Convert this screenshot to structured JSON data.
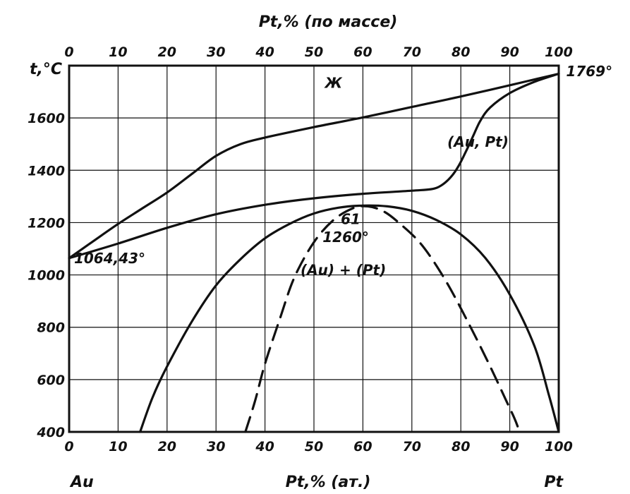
{
  "chart_data": {
    "type": "line",
    "top_axis": {
      "title": "Pt,% (по массе)",
      "ticks": [
        0,
        10,
        20,
        30,
        40,
        50,
        60,
        70,
        80,
        90,
        100
      ]
    },
    "bottom_axis": {
      "title": "Pt,% (ат.)",
      "ticks": [
        0,
        10,
        20,
        30,
        40,
        50,
        60,
        70,
        80,
        90,
        100
      ],
      "left_label": "Au",
      "right_label": "Pt"
    },
    "y_axis": {
      "title": "t,°C",
      "ticks": [
        400,
        600,
        800,
        1000,
        1200,
        1400,
        1600
      ]
    },
    "xlim": [
      0,
      100
    ],
    "ylim": [
      400,
      1800
    ],
    "grid": true,
    "series": [
      {
        "id": "liquidus",
        "style": "solid",
        "points": [
          [
            0,
            1064
          ],
          [
            5,
            1130
          ],
          [
            10,
            1195
          ],
          [
            15,
            1255
          ],
          [
            20,
            1315
          ],
          [
            25,
            1385
          ],
          [
            30,
            1455
          ],
          [
            35,
            1500
          ],
          [
            40,
            1525
          ],
          [
            50,
            1565
          ],
          [
            60,
            1602
          ],
          [
            70,
            1642
          ],
          [
            80,
            1682
          ],
          [
            90,
            1725
          ],
          [
            100,
            1769
          ]
        ]
      },
      {
        "id": "solidus",
        "style": "solid",
        "points": [
          [
            0,
            1064
          ],
          [
            10,
            1120
          ],
          [
            20,
            1180
          ],
          [
            30,
            1232
          ],
          [
            40,
            1268
          ],
          [
            50,
            1293
          ],
          [
            60,
            1310
          ],
          [
            70,
            1322
          ],
          [
            74,
            1328
          ],
          [
            76,
            1342
          ],
          [
            78,
            1375
          ],
          [
            79.5,
            1415
          ],
          [
            81,
            1470
          ],
          [
            82.5,
            1530
          ],
          [
            84,
            1590
          ],
          [
            86,
            1640
          ],
          [
            90,
            1695
          ],
          [
            95,
            1738
          ],
          [
            100,
            1769
          ]
        ]
      },
      {
        "id": "solvus-chemical",
        "style": "solid",
        "points": [
          [
            14.5,
            400
          ],
          [
            17,
            530
          ],
          [
            20,
            650
          ],
          [
            25,
            820
          ],
          [
            30,
            960
          ],
          [
            35,
            1060
          ],
          [
            40,
            1140
          ],
          [
            45,
            1195
          ],
          [
            50,
            1235
          ],
          [
            55,
            1257
          ],
          [
            60,
            1265
          ],
          [
            65,
            1262
          ],
          [
            70,
            1245
          ],
          [
            75,
            1210
          ],
          [
            80,
            1155
          ],
          [
            85,
            1065
          ],
          [
            90,
            925
          ],
          [
            95,
            730
          ],
          [
            98,
            540
          ],
          [
            100,
            400
          ]
        ]
      },
      {
        "id": "solvus-coherent",
        "style": "dashed",
        "points": [
          [
            36,
            400
          ],
          [
            38,
            520
          ],
          [
            40,
            660
          ],
          [
            43,
            830
          ],
          [
            46,
            990
          ],
          [
            50,
            1125
          ],
          [
            54,
            1210
          ],
          [
            58,
            1255
          ],
          [
            61,
            1262
          ],
          [
            64,
            1245
          ],
          [
            67,
            1205
          ],
          [
            72,
            1115
          ],
          [
            77,
            975
          ],
          [
            82,
            800
          ],
          [
            86,
            650
          ],
          [
            89,
            530
          ],
          [
            91,
            450
          ],
          [
            92,
            400
          ]
        ]
      }
    ],
    "annotations": [
      {
        "id": "liquid",
        "text": "Ж",
        "x": 54,
        "y": 1715
      },
      {
        "id": "au-pt",
        "text": "(Au, Pt)",
        "x": 83.5,
        "y": 1490
      },
      {
        "id": "au-plus-pt",
        "text": "(Au) + (Pt)",
        "x": 56,
        "y": 1000
      },
      {
        "id": "crit-composition",
        "text": "61",
        "x": 57.5,
        "y": 1195
      },
      {
        "id": "crit-temperature",
        "text": "1260°",
        "x": 56.5,
        "y": 1125
      },
      {
        "id": "au-melting",
        "text": "1064,43°",
        "x": 1,
        "y": 1045
      },
      {
        "id": "pt-melting",
        "text": "1769°",
        "x": 101.5,
        "y": 1760
      }
    ]
  }
}
